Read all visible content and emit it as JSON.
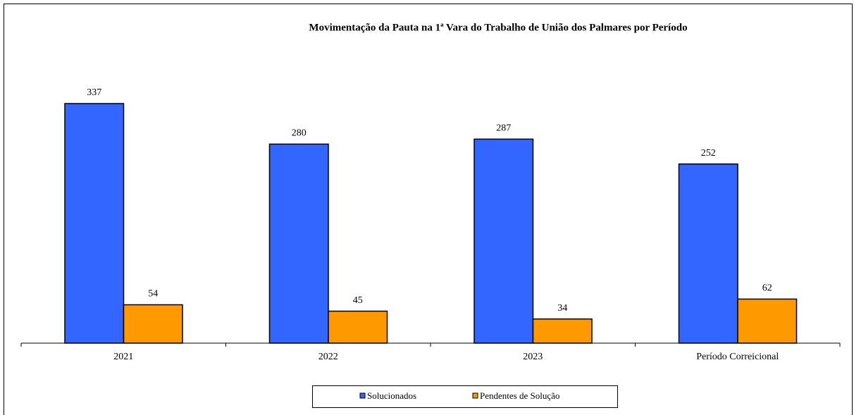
{
  "chart_data": {
    "type": "bar",
    "title": "Movimentação da Pauta na 1ª Vara do Trabalho de União dos Palmares por Período",
    "categories": [
      "2021",
      "2022",
      "2023",
      "Período Correicional"
    ],
    "series": [
      {
        "name": "Solucionados",
        "color": "#3366ff",
        "values": [
          337,
          280,
          287,
          252
        ]
      },
      {
        "name": "Pendentes de Solução",
        "color": "#ff9900",
        "values": [
          54,
          45,
          34,
          62
        ]
      }
    ],
    "legend": "bottom"
  }
}
